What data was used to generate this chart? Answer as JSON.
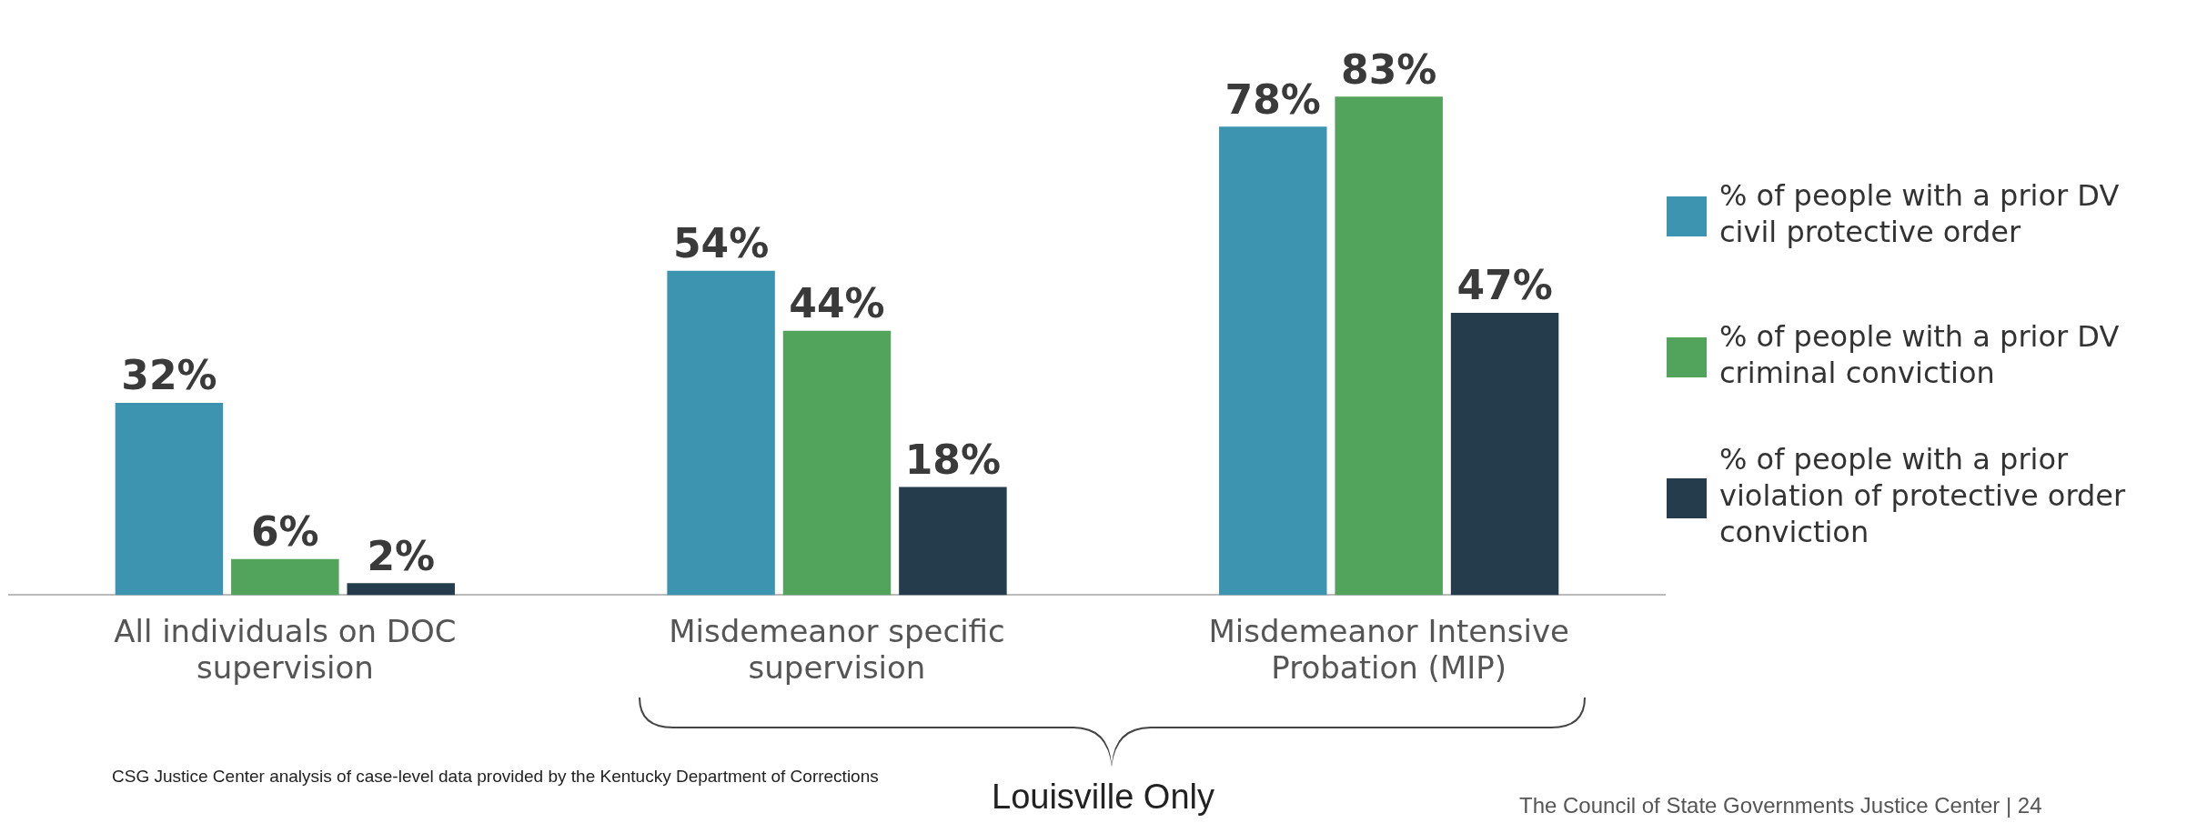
{
  "chart_data": {
    "type": "bar",
    "categories": [
      "All individuals on DOC supervision",
      "Misdemeanor specific supervision",
      "Misdemeanor Intensive Probation (MIP)"
    ],
    "series": [
      {
        "name": "% of people with a prior DV civil protective order",
        "color": "#3d94b0",
        "values": [
          32,
          54,
          78
        ],
        "value_labels": [
          "32%",
          "54%",
          "78%"
        ]
      },
      {
        "name": "% of people with a prior DV criminal conviction",
        "color": "#52a35b",
        "values": [
          6,
          44,
          83
        ],
        "value_labels": [
          "6%",
          "44%",
          "83%"
        ]
      },
      {
        "name": "% of people with a prior violation of protective order conviction",
        "color": "#253c4c",
        "values": [
          2,
          18,
          47
        ],
        "value_labels": [
          "2%",
          "18%",
          "47%"
        ]
      }
    ],
    "legend": "right",
    "grid": false,
    "tick_labels": "x",
    "annotations": [
      "Louisville Only",
      "CSG Justice Center analysis of case-level data provided by the Kentucky Department of Corrections",
      "The Council of State Governments Justice Center | 24"
    ]
  }
}
